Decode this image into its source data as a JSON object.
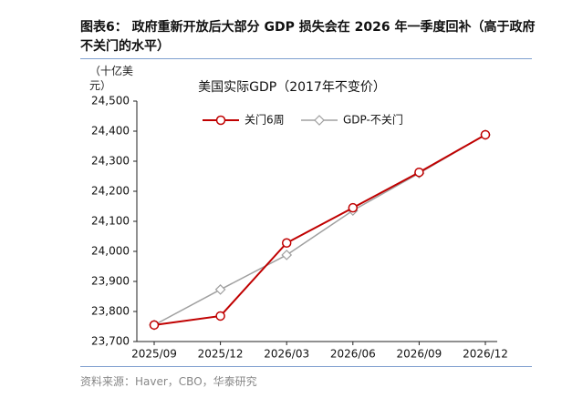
{
  "header": {
    "title": "图表6：  政府重新开放后大部分 GDP 损失会在 2026 年一季度回补（高于政府不关门的水平）"
  },
  "chart_data": {
    "type": "line",
    "title": "美国实际GDP（2017年不变价）",
    "y_label": "（十亿美元）",
    "categories": [
      "2025/09",
      "2025/12",
      "2026/03",
      "2026/06",
      "2026/09",
      "2026/12"
    ],
    "series": [
      {
        "name": "关门6周",
        "color": "#c00000",
        "marker": "circle",
        "values": [
          23755,
          23785,
          24028,
          24145,
          24263,
          24388
        ]
      },
      {
        "name": "GDP-不关门",
        "color": "#a0a0a0",
        "marker": "diamond",
        "values": [
          23755,
          23873,
          23988,
          24136,
          24260,
          24388
        ]
      }
    ],
    "ylim": [
      23700,
      24500
    ],
    "yticks": [
      {
        "value": 23700,
        "label": "23,700"
      },
      {
        "value": 23800,
        "label": "23,800"
      },
      {
        "value": 23900,
        "label": "23,900"
      },
      {
        "value": 24000,
        "label": "24,000"
      },
      {
        "value": 24100,
        "label": "24,100"
      },
      {
        "value": 24200,
        "label": "24,200"
      },
      {
        "value": 24300,
        "label": "24,300"
      },
      {
        "value": 24400,
        "label": "24,400"
      },
      {
        "value": 24500,
        "label": "24,500"
      }
    ],
    "grid": false,
    "legend": "top"
  },
  "footer": {
    "source": "资料来源：Haver，CBO，华泰研究"
  }
}
